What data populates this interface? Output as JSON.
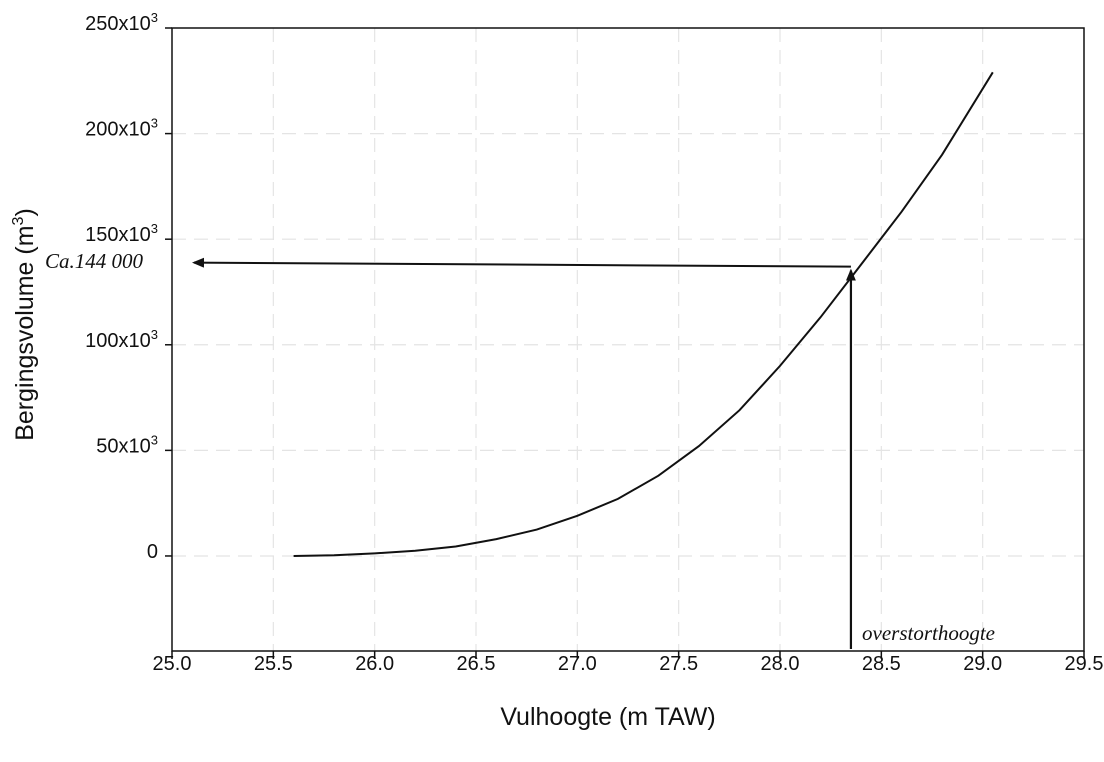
{
  "chart_data": {
    "type": "line",
    "title": "",
    "xlabel": "Vulhoogte (m TAW)",
    "ylabel_main": "Bergingsvolume (m",
    "ylabel_sup": "3",
    "ylabel_close": ")",
    "xlim": [
      25.0,
      29.5
    ],
    "ylim": [
      -45000,
      250000
    ],
    "x_ticks": [
      25.0,
      25.5,
      26.0,
      26.5,
      27.0,
      27.5,
      28.0,
      28.5,
      29.0,
      29.5
    ],
    "x_tick_labels": [
      "25.0",
      "25.5",
      "26.0",
      "26.5",
      "27.0",
      "27.5",
      "28.0",
      "28.5",
      "29.0",
      "29.5"
    ],
    "y_ticks": [
      0,
      50000,
      100000,
      150000,
      200000,
      250000
    ],
    "y_tick_labels": [
      {
        "base": "0",
        "sup": ""
      },
      {
        "base": "50x10",
        "sup": "3"
      },
      {
        "base": "100x10",
        "sup": "3"
      },
      {
        "base": "150x10",
        "sup": "3"
      },
      {
        "base": "200x10",
        "sup": "3"
      },
      {
        "base": "250x10",
        "sup": "3"
      }
    ],
    "grid": true,
    "series": [
      {
        "x": [
          25.6,
          25.8,
          26.0,
          26.2,
          26.4,
          26.6,
          26.8,
          27.0,
          27.2,
          27.4,
          27.6,
          27.8,
          28.0,
          28.2,
          28.4,
          28.6,
          28.8,
          29.05
        ],
        "y": [
          0,
          300,
          1200,
          2500,
          4500,
          8000,
          12500,
          19000,
          27000,
          38000,
          52000,
          69000,
          90000,
          113000,
          138000,
          163000,
          190000,
          229000
        ]
      }
    ],
    "annotations": {
      "level_line": {
        "x": 28.35,
        "y": 137000,
        "arrow_to_x": 25.0
      },
      "level_label": "Ca.144 000",
      "overflow_line": {
        "x": 28.35,
        "y_from": -45000,
        "y_to": 137000
      },
      "overflow_label": "overstorthoogte"
    }
  }
}
